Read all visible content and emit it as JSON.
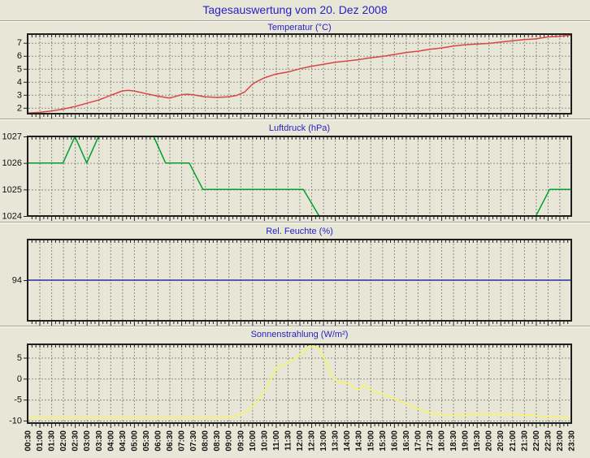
{
  "page": {
    "title": "Tagesauswertung vom 20. Dez 2008"
  },
  "colors": {
    "background": "#e8e6d7",
    "title_text": "#2222cc",
    "grid": "#8c8c84",
    "axis_border": "#1e1e1e",
    "axis_text": "#111111"
  },
  "x_axis": {
    "tick_step_minutes": 30,
    "minor_tick_minutes": 10,
    "labels": [
      "00:30",
      "01:00",
      "01:30",
      "02:00",
      "02:30",
      "03:00",
      "03:30",
      "04:00",
      "04:30",
      "05:00",
      "05:30",
      "06:00",
      "06:30",
      "07:00",
      "07:30",
      "08:00",
      "08:30",
      "09:00",
      "09:30",
      "10:00",
      "10:30",
      "11:00",
      "11:30",
      "12:00",
      "12:30",
      "13:00",
      "13:30",
      "14:00",
      "14:30",
      "15:00",
      "15:30",
      "16:00",
      "16:30",
      "17:00",
      "17:30",
      "18:00",
      "18:30",
      "19:00",
      "19:30",
      "20:00",
      "20:30",
      "21:00",
      "21:30",
      "22:00",
      "22:30",
      "23:00",
      "23:30"
    ]
  },
  "chart_data": [
    {
      "type": "line",
      "title": "Temperatur (°C)",
      "series_name": "Temperatur",
      "color": "#d94444",
      "ylim": [
        1.55,
        7.67
      ],
      "yticks": [
        7,
        6,
        5,
        4,
        3,
        2
      ],
      "grid_yticks": [
        2,
        3,
        4,
        5,
        6,
        7
      ],
      "x_minutes_range": [
        0,
        1380
      ],
      "points": [
        [
          0,
          1.6
        ],
        [
          30,
          1.65
        ],
        [
          60,
          1.75
        ],
        [
          90,
          1.9
        ],
        [
          120,
          2.1
        ],
        [
          150,
          2.35
        ],
        [
          180,
          2.6
        ],
        [
          210,
          2.95
        ],
        [
          240,
          3.3
        ],
        [
          255,
          3.35
        ],
        [
          270,
          3.3
        ],
        [
          300,
          3.1
        ],
        [
          330,
          2.9
        ],
        [
          360,
          2.75
        ],
        [
          390,
          3.0
        ],
        [
          405,
          3.05
        ],
        [
          420,
          3.0
        ],
        [
          450,
          2.85
        ],
        [
          480,
          2.8
        ],
        [
          510,
          2.85
        ],
        [
          530,
          2.95
        ],
        [
          550,
          3.2
        ],
        [
          560,
          3.5
        ],
        [
          570,
          3.8
        ],
        [
          580,
          4.0
        ],
        [
          600,
          4.3
        ],
        [
          630,
          4.6
        ],
        [
          660,
          4.75
        ],
        [
          690,
          5.0
        ],
        [
          720,
          5.2
        ],
        [
          750,
          5.35
        ],
        [
          780,
          5.5
        ],
        [
          810,
          5.6
        ],
        [
          840,
          5.7
        ],
        [
          870,
          5.85
        ],
        [
          900,
          5.95
        ],
        [
          930,
          6.1
        ],
        [
          960,
          6.25
        ],
        [
          990,
          6.35
        ],
        [
          1020,
          6.5
        ],
        [
          1050,
          6.6
        ],
        [
          1080,
          6.75
        ],
        [
          1110,
          6.85
        ],
        [
          1140,
          6.9
        ],
        [
          1170,
          6.95
        ],
        [
          1200,
          7.05
        ],
        [
          1230,
          7.15
        ],
        [
          1260,
          7.25
        ],
        [
          1290,
          7.3
        ],
        [
          1320,
          7.45
        ],
        [
          1350,
          7.5
        ],
        [
          1380,
          7.6
        ]
      ]
    },
    {
      "type": "line",
      "title": "Luftdruck (hPa)",
      "series_name": "Luftdruck",
      "color": "#00a02d",
      "ylim": [
        1024,
        1027
      ],
      "yticks": [
        1027,
        1026,
        1025,
        1024
      ],
      "grid_yticks": [
        1025,
        1026
      ],
      "x_minutes_range": [
        0,
        1380
      ],
      "points": [
        [
          0,
          1026
        ],
        [
          90,
          1026
        ],
        [
          120,
          1027
        ],
        [
          150,
          1026
        ],
        [
          180,
          1027
        ],
        [
          320,
          1027
        ],
        [
          350,
          1026
        ],
        [
          410,
          1026
        ],
        [
          445,
          1025
        ],
        [
          700,
          1025
        ],
        [
          740,
          1024
        ],
        [
          1290,
          1024
        ],
        [
          1325,
          1025
        ],
        [
          1380,
          1025
        ]
      ]
    },
    {
      "type": "line",
      "title": "Rel. Feuchte (%)",
      "series_name": "Rel. Feuchte",
      "color": "#2a2aae",
      "ylim": [
        84,
        104
      ],
      "yticks": [
        94
      ],
      "grid_yticks": [],
      "x_minutes_range": [
        0,
        1380
      ],
      "points": [
        [
          0,
          94
        ],
        [
          1380,
          94
        ]
      ]
    },
    {
      "type": "line",
      "title": "Sonnenstrahlung (W/m²)",
      "series_name": "Sonnenstrahlung",
      "color": "#f2f27d",
      "ylim": [
        -10.6,
        8.2
      ],
      "yticks": [
        5,
        0,
        -5,
        -10
      ],
      "grid_yticks": [
        5,
        0,
        -5,
        -10
      ],
      "x_minutes_range": [
        0,
        1380
      ],
      "points": [
        [
          0,
          -9.3
        ],
        [
          60,
          -9.3
        ],
        [
          120,
          -9.3
        ],
        [
          180,
          -9.3
        ],
        [
          240,
          -9.3
        ],
        [
          300,
          -9.3
        ],
        [
          360,
          -9.3
        ],
        [
          420,
          -9.3
        ],
        [
          480,
          -9.3
        ],
        [
          510,
          -9.2
        ],
        [
          535,
          -8.7
        ],
        [
          550,
          -8.3
        ],
        [
          570,
          -6.8
        ],
        [
          590,
          -4.5
        ],
        [
          610,
          -1.5
        ],
        [
          630,
          2.5
        ],
        [
          660,
          3.8
        ],
        [
          680,
          4.8
        ],
        [
          700,
          6.5
        ],
        [
          712,
          7.6
        ],
        [
          728,
          7.8
        ],
        [
          740,
          7.2
        ],
        [
          755,
          4.5
        ],
        [
          770,
          1.0
        ],
        [
          785,
          -0.6
        ],
        [
          800,
          -0.9
        ],
        [
          815,
          -1.0
        ],
        [
          828,
          -2.3
        ],
        [
          842,
          -2.6
        ],
        [
          855,
          -1.6
        ],
        [
          875,
          -2.8
        ],
        [
          900,
          -3.6
        ],
        [
          930,
          -4.7
        ],
        [
          960,
          -5.9
        ],
        [
          990,
          -7.1
        ],
        [
          1010,
          -7.9
        ],
        [
          1030,
          -8.4
        ],
        [
          1060,
          -8.7
        ],
        [
          1090,
          -8.8
        ],
        [
          1120,
          -8.7
        ],
        [
          1145,
          -8.4
        ],
        [
          1160,
          -8.3
        ],
        [
          1180,
          -8.7
        ],
        [
          1200,
          -8.5
        ],
        [
          1240,
          -8.6
        ],
        [
          1280,
          -8.7
        ],
        [
          1300,
          -9.0
        ],
        [
          1340,
          -9.1
        ],
        [
          1380,
          -9.3
        ]
      ]
    }
  ]
}
